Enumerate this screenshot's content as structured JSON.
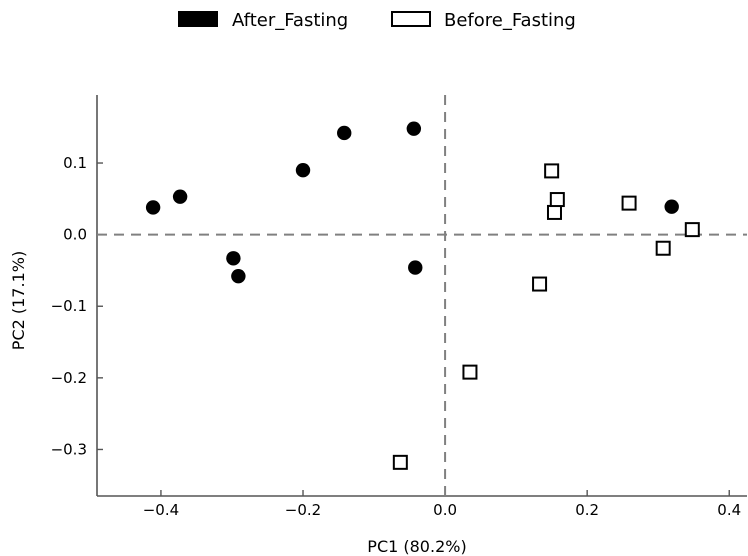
{
  "chart_data": {
    "type": "scatter",
    "title": "",
    "xlabel": "PC1 (80.2%)",
    "ylabel": "PC2 (17.1%)",
    "xlim": [
      -0.49,
      0.425
    ],
    "ylim": [
      -0.365,
      0.195
    ],
    "xticks": [
      -0.4,
      -0.2,
      0.0,
      0.2,
      0.4
    ],
    "xtick_labels": [
      "−0.4",
      "−0.2",
      "0.0",
      "0.2",
      "0.4"
    ],
    "yticks": [
      0.1,
      0.0,
      -0.1,
      -0.2,
      -0.3
    ],
    "ytick_labels": [
      "0.1",
      "0.0",
      "−0.1",
      "−0.2",
      "−0.3"
    ],
    "reference_lines": {
      "x": 0.0,
      "y": 0.0,
      "style": "dashed",
      "color": "#808080"
    },
    "grid": false,
    "legend_position": "top-center",
    "series": [
      {
        "name": "After_Fasting",
        "marker": "filled-circle",
        "color": "#000000",
        "points": [
          {
            "x": -0.411,
            "y": 0.038
          },
          {
            "x": -0.373,
            "y": 0.053
          },
          {
            "x": -0.298,
            "y": -0.033
          },
          {
            "x": -0.291,
            "y": -0.058
          },
          {
            "x": -0.2,
            "y": 0.09
          },
          {
            "x": -0.142,
            "y": 0.142
          },
          {
            "x": -0.044,
            "y": 0.148
          },
          {
            "x": -0.042,
            "y": -0.046
          },
          {
            "x": 0.319,
            "y": 0.039
          }
        ]
      },
      {
        "name": "Before_Fasting",
        "marker": "hollow-square",
        "color": "#000000",
        "points": [
          {
            "x": -0.063,
            "y": -0.318
          },
          {
            "x": 0.035,
            "y": -0.192
          },
          {
            "x": 0.133,
            "y": -0.069
          },
          {
            "x": 0.15,
            "y": 0.089
          },
          {
            "x": 0.154,
            "y": 0.031
          },
          {
            "x": 0.158,
            "y": 0.049
          },
          {
            "x": 0.259,
            "y": 0.044
          },
          {
            "x": 0.307,
            "y": -0.019
          },
          {
            "x": 0.348,
            "y": 0.007
          }
        ]
      }
    ]
  }
}
